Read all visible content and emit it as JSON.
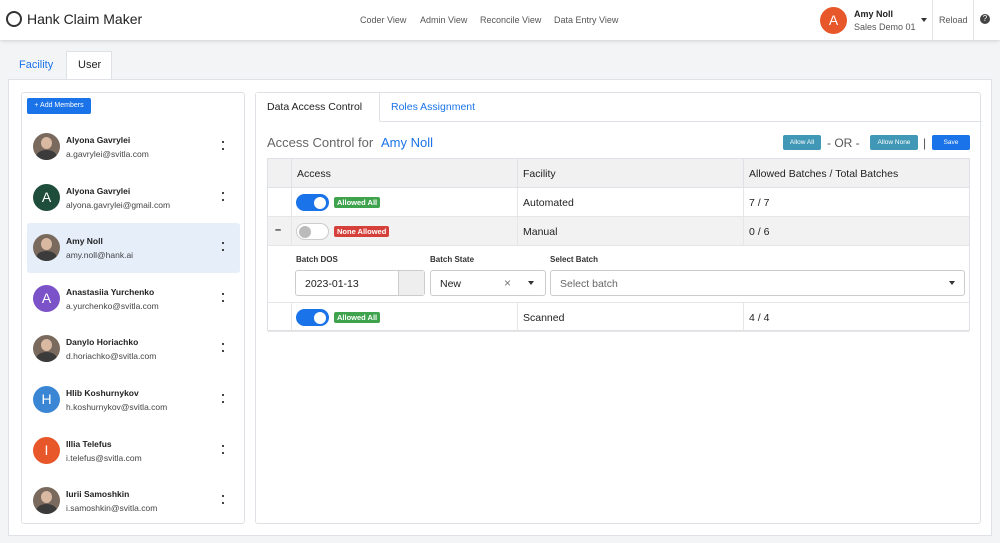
{
  "header": {
    "title": "Hank Claim Maker",
    "nav": [
      "Coder View",
      "Admin View",
      "Reconcile View",
      "Data Entry View"
    ],
    "user": {
      "initial": "A",
      "name": "Amy Noll",
      "org": "Sales Demo 01"
    },
    "reload": "Reload",
    "help": "?"
  },
  "tabs": [
    "Facility",
    "User"
  ],
  "members": {
    "add": "+ Add Members",
    "list": [
      {
        "name": "Alyona Gavrylei",
        "email": "a.gavrylei@svitla.com"
      },
      {
        "name": "Alyona Gavrylei",
        "email": "alyona.gavrylei@gmail.com",
        "initial": "A",
        "color": "#1f4d3b"
      },
      {
        "name": "Amy Noll",
        "email": "amy.noll@hank.ai"
      },
      {
        "name": "Anastasiia Yurchenko",
        "email": "a.yurchenko@svitla.com",
        "initial": "A",
        "color": "#7b52c7"
      },
      {
        "name": "Danylo Horiachko",
        "email": "d.horiachko@svitla.com"
      },
      {
        "name": "Hlib Koshurnykov",
        "email": "h.koshurnykov@svitla.com",
        "initial": "H",
        "color": "#3a86d4"
      },
      {
        "name": "Illia Telefus",
        "email": "i.telefus@svitla.com",
        "initial": "I",
        "color": "#e8572a"
      },
      {
        "name": "Iurii Samoshkin",
        "email": "i.samoshkin@svitla.com"
      }
    ]
  },
  "panel": {
    "tabs": [
      "Data Access Control",
      "Roles Assignment"
    ],
    "heading": "Access Control for",
    "heading_user": "Amy Noll",
    "buttons": {
      "allow_all": "Allow All",
      "or": "- OR -",
      "allow_none": "Allow None",
      "sep": "|",
      "save": "Save"
    },
    "columns": [
      "Access",
      "Facility",
      "Allowed Batches / Total Batches"
    ],
    "rows": [
      {
        "badge": "Allowed All",
        "facility": "Automated",
        "batches": "7 / 7"
      },
      {
        "expand": "–",
        "badge": "None Allowed",
        "facility": "Manual",
        "batches": "0 / 6"
      },
      {
        "badge": "Allowed All",
        "facility": "Scanned",
        "batches": "4 / 4"
      }
    ],
    "filter": {
      "labels": [
        "Batch DOS",
        "Batch State",
        "Select Batch"
      ],
      "dos": "2023-01-13",
      "state": "New",
      "clear": "×",
      "select": "Select batch"
    }
  }
}
